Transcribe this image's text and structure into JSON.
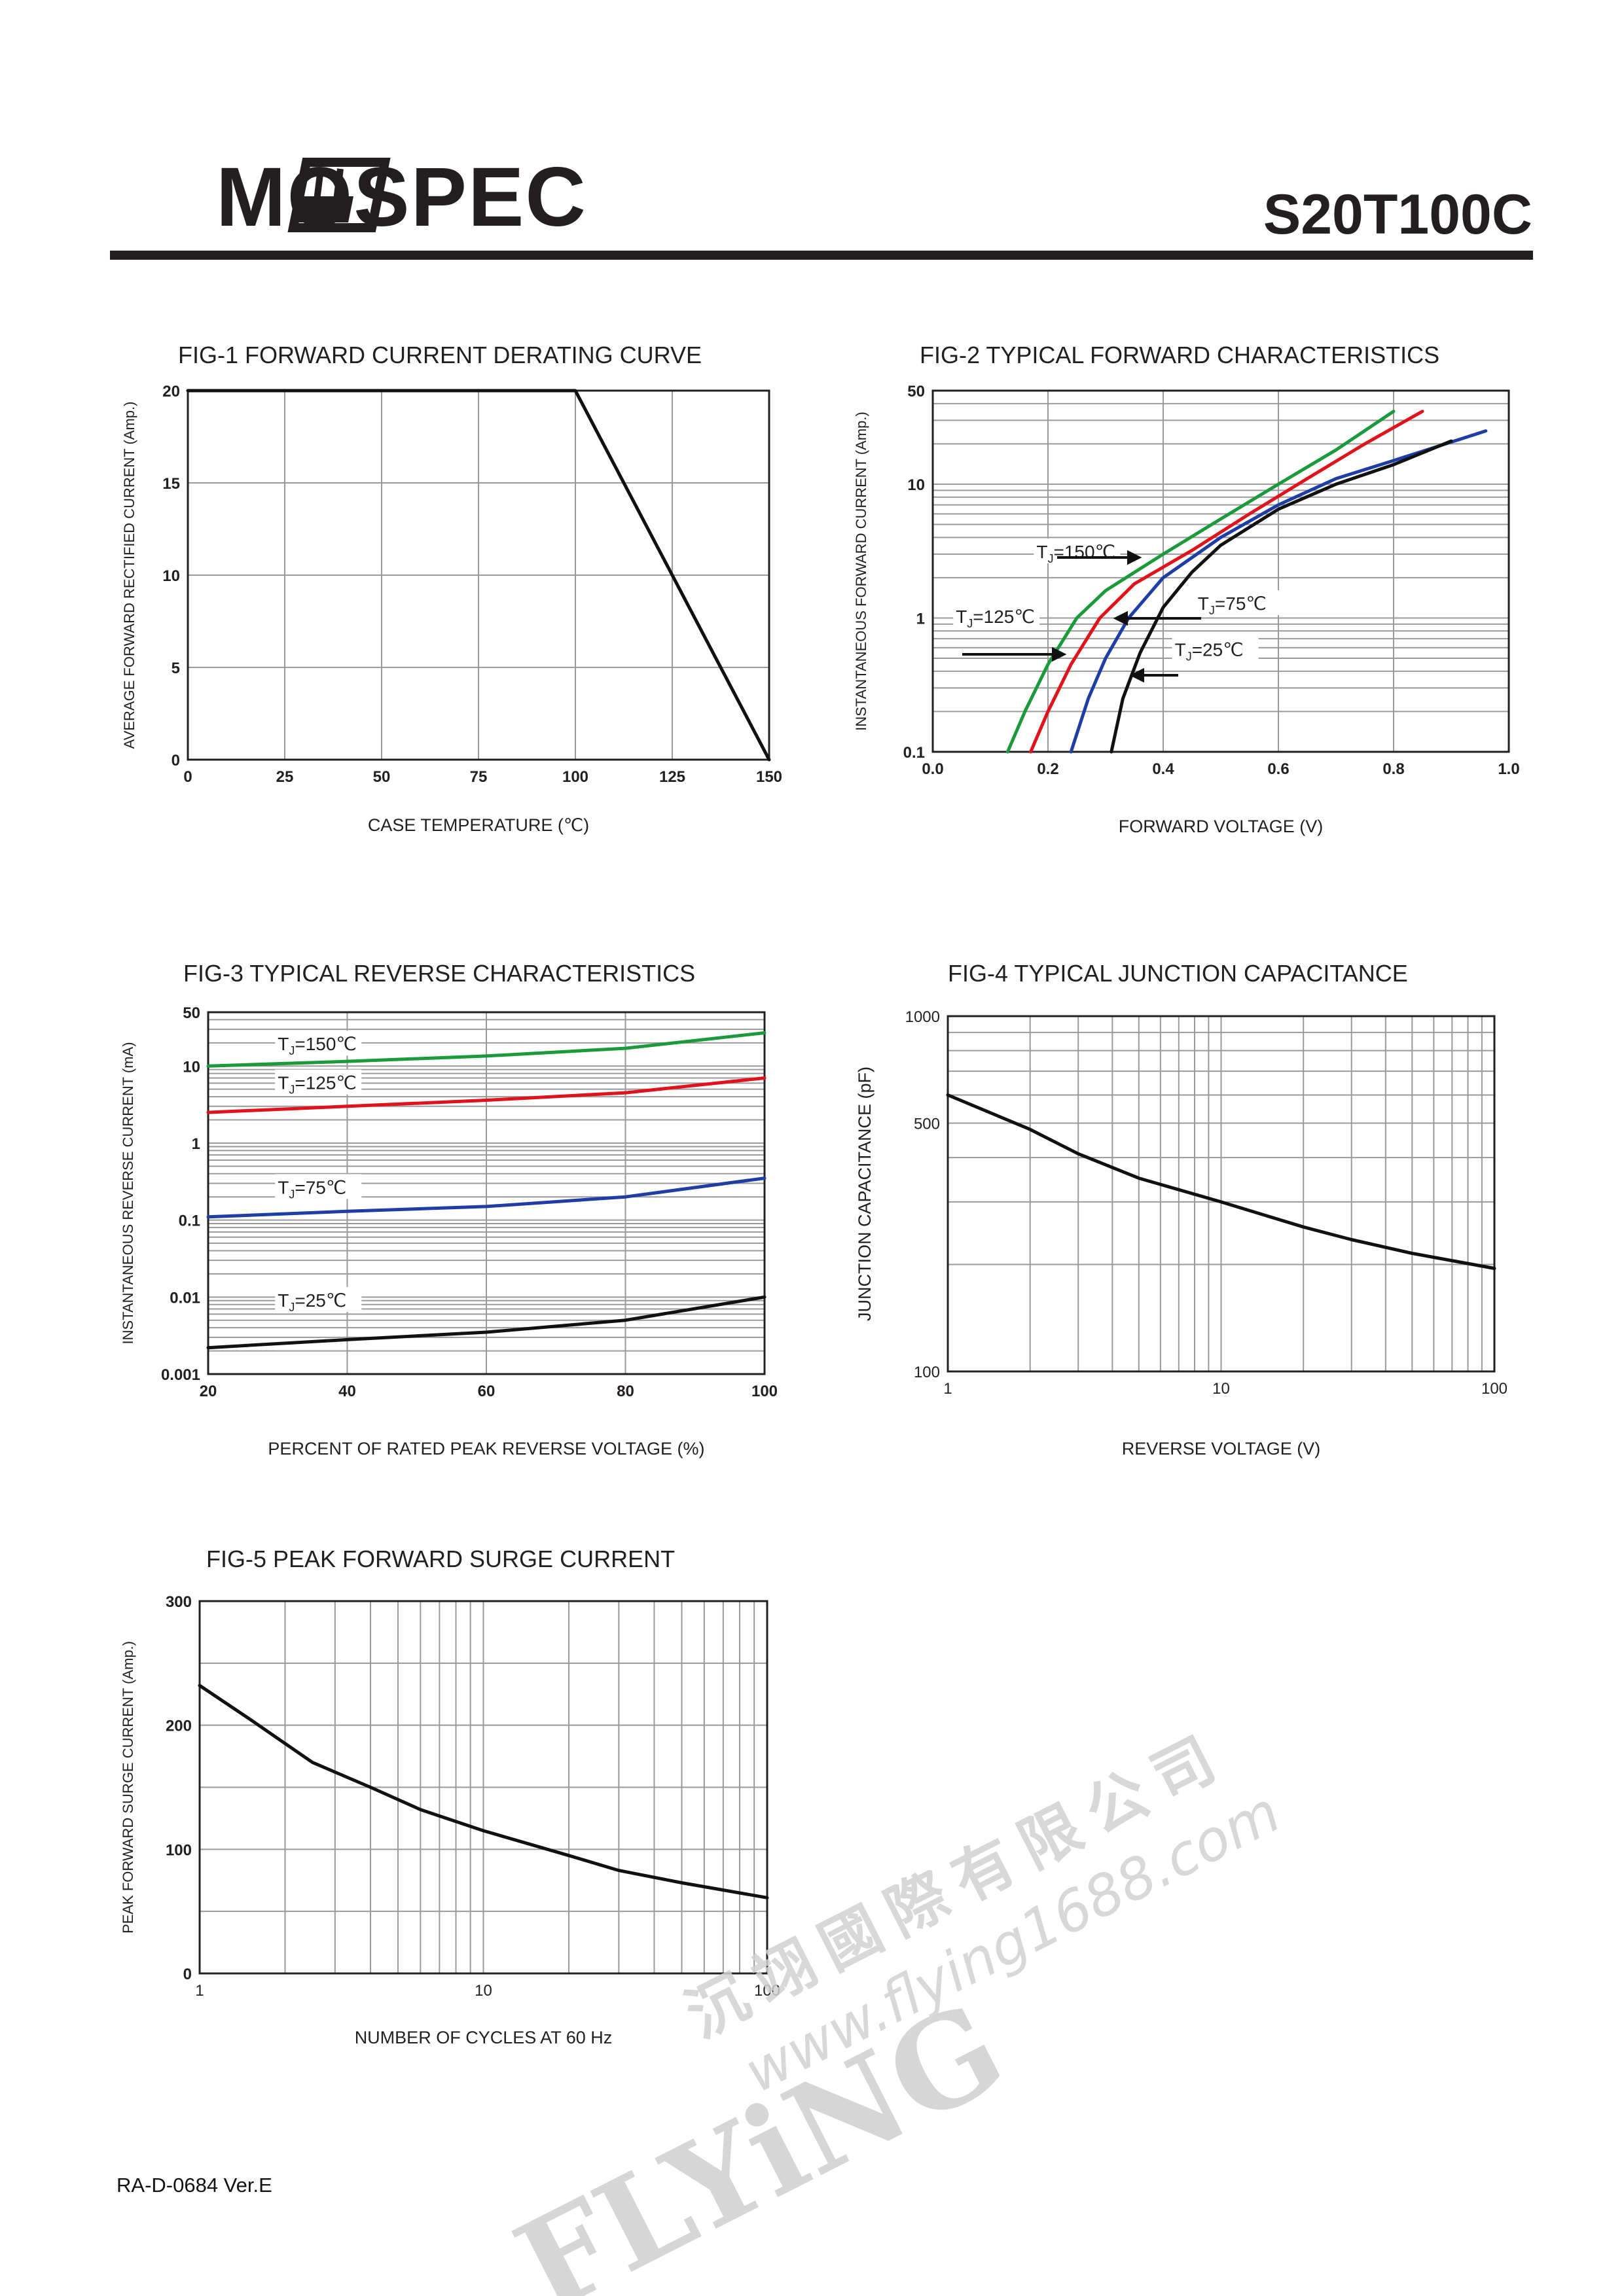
{
  "header": {
    "brand": "MOSPEC",
    "part_number": "S20T100C"
  },
  "footer": {
    "doc_id": "RA-D-0684 Ver.E"
  },
  "watermark": {
    "brand": "FLYiNG",
    "chinese": "沉翊國際有限公司",
    "url": "www.flying1688.com"
  },
  "colors": {
    "text": "#231f20",
    "grid": "#9a9a9a",
    "curve_black": "#111111",
    "curve_green": "#1a9a3a",
    "curve_red": "#e0121b",
    "curve_blue": "#1f3ea5"
  },
  "chart_data": [
    {
      "id": "fig1",
      "type": "line",
      "title": "FIG-1 FORWARD CURRENT DERATING CURVE",
      "xlabel": "CASE TEMPERATURE (℃)",
      "ylabel": "AVERAGE FORWARD RECTIFIED CURRENT (Amp.)",
      "xlim": [
        0,
        150
      ],
      "ylim": [
        0,
        20
      ],
      "xscale": "linear",
      "yscale": "linear",
      "xticks": [
        0,
        25,
        50,
        75,
        100,
        125,
        150
      ],
      "yticks": [
        0,
        5,
        10,
        15,
        20
      ],
      "xtick_labels": [
        "0",
        "25",
        "50",
        "75",
        "100",
        "125",
        "150"
      ],
      "ytick_labels": [
        "0",
        "5",
        "10",
        "15",
        "20"
      ],
      "grid": true,
      "series": [
        {
          "color": "#111111",
          "x": [
            0,
            100,
            150
          ],
          "y": [
            20,
            20,
            0
          ]
        }
      ]
    },
    {
      "id": "fig2",
      "type": "line",
      "title": "FIG-2 TYPICAL FORWARD CHARACTERISTICS",
      "xlabel": "FORWARD VOLTAGE (V)",
      "ylabel": "INSTANTANEOUS FORWARD CURRENT (Amp.)",
      "xlim": [
        0.0,
        1.0
      ],
      "ylim": [
        0.1,
        50
      ],
      "xscale": "linear",
      "yscale": "log",
      "xticks": [
        0.0,
        0.2,
        0.4,
        0.6,
        0.8,
        1.0
      ],
      "xtick_labels": [
        "0.0",
        "0.2",
        "0.4",
        "0.6",
        "0.8",
        "1.0"
      ],
      "yticks": [
        0.1,
        1,
        10,
        50
      ],
      "ytick_labels": [
        "0.1",
        "1",
        "10",
        "50"
      ],
      "grid": true,
      "series": [
        {
          "name": "TJ=150℃",
          "color": "#1a9a3a",
          "x": [
            0.13,
            0.16,
            0.2,
            0.25,
            0.3,
            0.4,
            0.5,
            0.6,
            0.7,
            0.8
          ],
          "y": [
            0.1,
            0.2,
            0.45,
            1.0,
            1.6,
            3.0,
            5.5,
            10,
            18,
            35
          ]
        },
        {
          "name": "TJ=125℃",
          "color": "#e0121b",
          "x": [
            0.17,
            0.2,
            0.24,
            0.29,
            0.35,
            0.45,
            0.55,
            0.65,
            0.75,
            0.85
          ],
          "y": [
            0.1,
            0.2,
            0.45,
            1.0,
            1.8,
            3.2,
            6.0,
            11,
            20,
            35
          ]
        },
        {
          "name": "TJ=75℃",
          "color": "#1f3ea5",
          "x": [
            0.24,
            0.27,
            0.3,
            0.34,
            0.4,
            0.5,
            0.6,
            0.7,
            0.8,
            0.96
          ],
          "y": [
            0.1,
            0.25,
            0.5,
            1.0,
            2.0,
            4.0,
            7.0,
            11,
            15,
            25
          ]
        },
        {
          "name": "TJ=25℃",
          "color": "#111111",
          "x": [
            0.31,
            0.33,
            0.36,
            0.4,
            0.45,
            0.5,
            0.6,
            0.7,
            0.8,
            0.9
          ],
          "y": [
            0.1,
            0.25,
            0.55,
            1.2,
            2.2,
            3.5,
            6.5,
            10,
            14,
            21
          ]
        }
      ],
      "annotations": [
        {
          "label_main": "T",
          "label_sub": "J",
          "label_rest": "=150℃",
          "at_x": 0.18,
          "at_y": 2.8
        },
        {
          "label_main": "T",
          "label_sub": "J",
          "label_rest": "=125℃",
          "at_x": 0.04,
          "at_y": 0.92
        },
        {
          "label_main": "T",
          "label_sub": "J",
          "label_rest": "=75℃",
          "at_x": 0.46,
          "at_y": 1.15
        },
        {
          "label_main": "T",
          "label_sub": "J",
          "label_rest": "=25℃",
          "at_x": 0.42,
          "at_y": 0.52
        }
      ]
    },
    {
      "id": "fig3",
      "type": "line",
      "title": "FIG-3 TYPICAL REVERSE CHARACTERISTICS",
      "xlabel": "PERCENT OF RATED PEAK REVERSE VOLTAGE (%)",
      "ylabel": "INSTANTANEOUS REVERSE CURRENT (mA)",
      "xlim": [
        20,
        100
      ],
      "ylim": [
        0.001,
        50
      ],
      "xscale": "linear",
      "yscale": "log",
      "xticks": [
        20,
        40,
        60,
        80,
        100
      ],
      "xtick_labels": [
        "20",
        "40",
        "60",
        "80",
        "100"
      ],
      "yticks": [
        0.001,
        0.01,
        0.1,
        1,
        10,
        50
      ],
      "ytick_labels": [
        "0.001",
        "0.01",
        "0.1",
        "1",
        "10",
        "50"
      ],
      "grid": true,
      "series": [
        {
          "name": "TJ=150℃",
          "color": "#1a9a3a",
          "x": [
            20,
            40,
            60,
            80,
            100
          ],
          "y": [
            10,
            11.5,
            13.5,
            17,
            27
          ]
        },
        {
          "name": "TJ=125℃",
          "color": "#e0121b",
          "x": [
            20,
            40,
            60,
            80,
            100
          ],
          "y": [
            2.5,
            3.0,
            3.6,
            4.5,
            7.0
          ]
        },
        {
          "name": "TJ=75℃",
          "color": "#1f3ea5",
          "x": [
            20,
            40,
            60,
            80,
            100
          ],
          "y": [
            0.11,
            0.13,
            0.15,
            0.2,
            0.35
          ]
        },
        {
          "name": "TJ=25℃",
          "color": "#111111",
          "x": [
            20,
            40,
            60,
            80,
            100
          ],
          "y": [
            0.0022,
            0.0028,
            0.0035,
            0.005,
            0.01
          ]
        }
      ],
      "annotations": [
        {
          "label_main": "T",
          "label_sub": "J",
          "label_rest": "=150℃",
          "at_x": 30,
          "at_y": 16
        },
        {
          "label_main": "T",
          "label_sub": "J",
          "label_rest": "=125℃",
          "at_x": 30,
          "at_y": 5.0
        },
        {
          "label_main": "T",
          "label_sub": "J",
          "label_rest": "=75℃",
          "at_x": 30,
          "at_y": 0.22
        },
        {
          "label_main": "T",
          "label_sub": "J",
          "label_rest": "=25℃",
          "at_x": 30,
          "at_y": 0.0075
        }
      ]
    },
    {
      "id": "fig4",
      "type": "line",
      "title": "FIG-4 TYPICAL JUNCTION CAPACITANCE",
      "xlabel": "REVERSE VOLTAGE (V)",
      "ylabel": "JUNCTION CAPACITANCE (pF)",
      "xlim": [
        1,
        100
      ],
      "ylim": [
        100,
        1000
      ],
      "xscale": "log",
      "yscale": "log",
      "xticks": [
        1,
        10,
        100
      ],
      "xtick_labels": [
        "1",
        "10",
        "100"
      ],
      "yticks": [
        100,
        500,
        1000
      ],
      "ytick_labels": [
        "100",
        "500",
        "1000"
      ],
      "grid": true,
      "series": [
        {
          "color": "#111111",
          "x": [
            1,
            2,
            3,
            5,
            10,
            20,
            30,
            50,
            100
          ],
          "y": [
            600,
            480,
            410,
            350,
            300,
            255,
            235,
            215,
            195
          ]
        }
      ]
    },
    {
      "id": "fig5",
      "type": "line",
      "title": "FIG-5 PEAK FORWARD SURGE CURRENT",
      "xlabel": "NUMBER OF CYCLES AT 60 Hz",
      "ylabel": "PEAK FORWARD SURGE    CURRENT (Amp.)",
      "xlim": [
        1,
        100
      ],
      "ylim": [
        0,
        300
      ],
      "xscale": "log",
      "yscale": "linear",
      "xticks": [
        1,
        10,
        100
      ],
      "xtick_labels": [
        "1",
        "10",
        "100"
      ],
      "yticks": [
        0,
        100,
        200,
        300
      ],
      "ytick_labels": [
        "0",
        "100",
        "200",
        "300"
      ],
      "grid": true,
      "series": [
        {
          "color": "#111111",
          "x": [
            1,
            1.5,
            2.5,
            4,
            6,
            10,
            20,
            30,
            50,
            100
          ],
          "y": [
            232,
            205,
            170,
            150,
            132,
            115,
            95,
            83,
            73,
            61
          ]
        }
      ]
    }
  ]
}
